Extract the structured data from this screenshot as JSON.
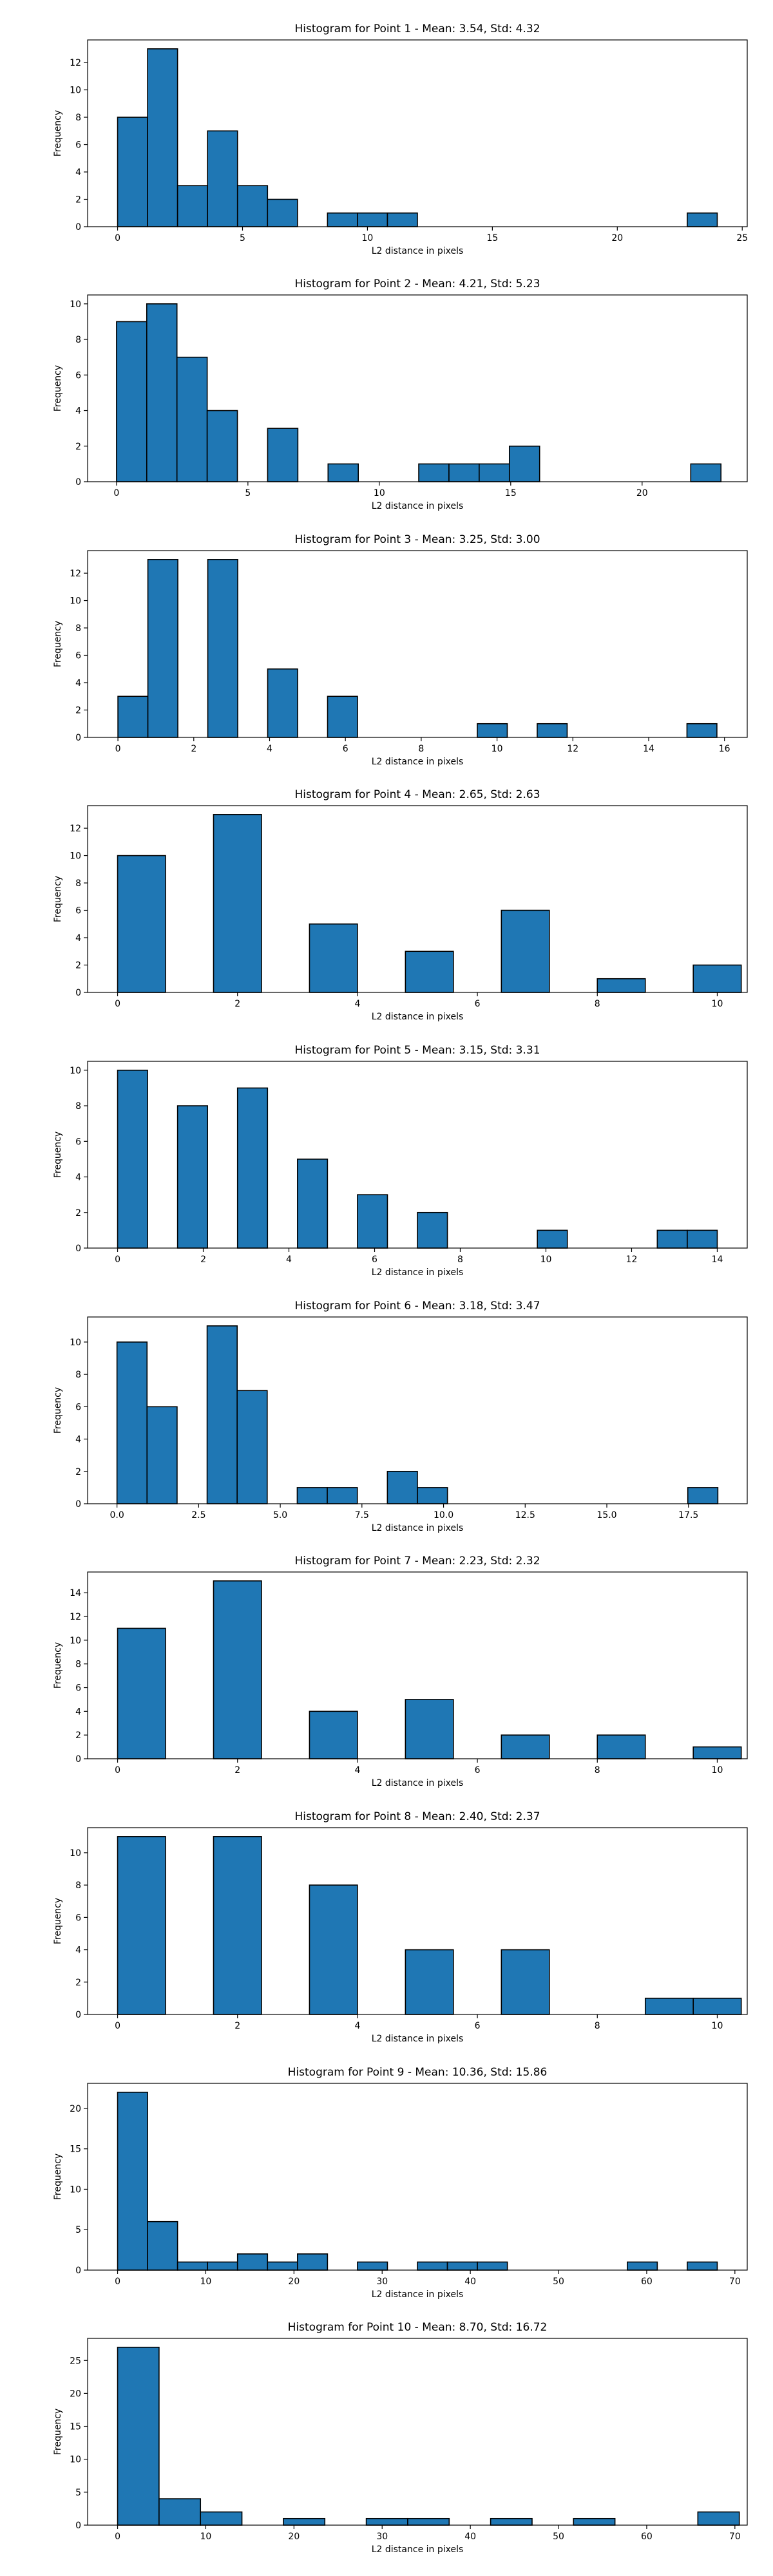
{
  "colors": {
    "bar_fill": "#1f77b4",
    "bar_edge": "#000000",
    "axes": "#000000",
    "background": "#ffffff"
  },
  "chart_data": [
    {
      "type": "bar",
      "title": "Histogram for Point 1 - Mean: 3.54, Std: 4.32",
      "xlabel": "L2 distance in pixels",
      "ylabel": "Frequency",
      "grid": false,
      "xlim": [
        -1.2,
        25.2
      ],
      "ylim": [
        0,
        13.65
      ],
      "xticks": [
        0,
        5,
        10,
        15,
        20,
        25
      ],
      "xtick_labels": [
        "0",
        "5",
        "10",
        "15",
        "20",
        "25"
      ],
      "yticks": [
        0,
        2,
        4,
        6,
        8,
        10,
        12
      ],
      "ytick_labels": [
        "0",
        "2",
        "4",
        "6",
        "8",
        "10",
        "12"
      ],
      "bins": [
        {
          "x0": 0,
          "x1": 1.2,
          "count": 8
        },
        {
          "x0": 1.2,
          "x1": 2.4,
          "count": 13
        },
        {
          "x0": 2.4,
          "x1": 3.6,
          "count": 3
        },
        {
          "x0": 3.6,
          "x1": 4.8,
          "count": 7
        },
        {
          "x0": 4.8,
          "x1": 6.0,
          "count": 3
        },
        {
          "x0": 6.0,
          "x1": 7.2,
          "count": 2
        },
        {
          "x0": 8.4,
          "x1": 9.6,
          "count": 1
        },
        {
          "x0": 9.6,
          "x1": 10.8,
          "count": 1
        },
        {
          "x0": 10.8,
          "x1": 12.0,
          "count": 1
        },
        {
          "x0": 22.8,
          "x1": 24.0,
          "count": 1
        }
      ]
    },
    {
      "type": "bar",
      "title": "Histogram for Point 2 - Mean: 4.21, Std: 5.23",
      "xlabel": "L2 distance in pixels",
      "ylabel": "Frequency",
      "grid": false,
      "xlim": [
        -1.1,
        24.0
      ],
      "ylim": [
        0,
        10.5
      ],
      "xticks": [
        0,
        5,
        10,
        15,
        20
      ],
      "xtick_labels": [
        "0",
        "5",
        "10",
        "15",
        "20"
      ],
      "yticks": [
        0,
        2,
        4,
        6,
        8,
        10
      ],
      "ytick_labels": [
        "0",
        "2",
        "4",
        "6",
        "8",
        "10"
      ],
      "bins": [
        {
          "x0": 0,
          "x1": 1.15,
          "count": 9
        },
        {
          "x0": 1.15,
          "x1": 2.3,
          "count": 10
        },
        {
          "x0": 2.3,
          "x1": 3.45,
          "count": 7
        },
        {
          "x0": 3.45,
          "x1": 4.6,
          "count": 4
        },
        {
          "x0": 5.75,
          "x1": 6.9,
          "count": 3
        },
        {
          "x0": 8.05,
          "x1": 9.2,
          "count": 1
        },
        {
          "x0": 11.5,
          "x1": 12.65,
          "count": 1
        },
        {
          "x0": 12.65,
          "x1": 13.8,
          "count": 1
        },
        {
          "x0": 13.8,
          "x1": 14.95,
          "count": 1
        },
        {
          "x0": 14.95,
          "x1": 16.1,
          "count": 2
        },
        {
          "x0": 21.85,
          "x1": 23.0,
          "count": 1
        }
      ]
    },
    {
      "type": "bar",
      "title": "Histogram for Point 3 - Mean: 3.25, Std: 3.00",
      "xlabel": "L2 distance in pixels",
      "ylabel": "Frequency",
      "grid": false,
      "xlim": [
        -0.8,
        16.6
      ],
      "ylim": [
        0,
        13.65
      ],
      "xticks": [
        0,
        2,
        4,
        6,
        8,
        10,
        12,
        14,
        16
      ],
      "xtick_labels": [
        "0",
        "2",
        "4",
        "6",
        "8",
        "10",
        "12",
        "14",
        "16"
      ],
      "yticks": [
        0,
        2,
        4,
        6,
        8,
        10,
        12
      ],
      "ytick_labels": [
        "0",
        "2",
        "4",
        "6",
        "8",
        "10",
        "12"
      ],
      "bins": [
        {
          "x0": 0,
          "x1": 0.79,
          "count": 3
        },
        {
          "x0": 0.79,
          "x1": 1.58,
          "count": 13
        },
        {
          "x0": 2.37,
          "x1": 3.16,
          "count": 13
        },
        {
          "x0": 3.95,
          "x1": 4.74,
          "count": 5
        },
        {
          "x0": 5.53,
          "x1": 6.32,
          "count": 3
        },
        {
          "x0": 9.48,
          "x1": 10.27,
          "count": 1
        },
        {
          "x0": 11.06,
          "x1": 11.85,
          "count": 1
        },
        {
          "x0": 15.01,
          "x1": 15.8,
          "count": 1
        }
      ]
    },
    {
      "type": "bar",
      "title": "Histogram for Point 4 - Mean: 2.65, Std: 2.63",
      "xlabel": "L2 distance in pixels",
      "ylabel": "Frequency",
      "grid": false,
      "xlim": [
        -0.5,
        10.5
      ],
      "ylim": [
        0,
        13.65
      ],
      "xticks": [
        0,
        2,
        4,
        6,
        8,
        10
      ],
      "xtick_labels": [
        "0",
        "2",
        "4",
        "6",
        "8",
        "10"
      ],
      "yticks": [
        0,
        2,
        4,
        6,
        8,
        10,
        12
      ],
      "ytick_labels": [
        "0",
        "2",
        "4",
        "6",
        "8",
        "10",
        "12"
      ],
      "bins": [
        {
          "x0": 0,
          "x1": 0.8,
          "count": 10
        },
        {
          "x0": 1.6,
          "x1": 2.4,
          "count": 13
        },
        {
          "x0": 3.2,
          "x1": 4.0,
          "count": 5
        },
        {
          "x0": 4.8,
          "x1": 5.6,
          "count": 3
        },
        {
          "x0": 6.4,
          "x1": 7.2,
          "count": 6
        },
        {
          "x0": 8.0,
          "x1": 8.8,
          "count": 1
        },
        {
          "x0": 9.6,
          "x1": 10.4,
          "count": 2
        }
      ],
      "x_label_offset": -1.6
    },
    {
      "type": "bar",
      "title": "Histogram for Point 5 - Mean: 3.15, Std: 3.31",
      "xlabel": "L2 distance in pixels",
      "ylabel": "Frequency",
      "grid": false,
      "xlim": [
        -0.7,
        14.7
      ],
      "ylim": [
        0,
        10.5
      ],
      "xticks": [
        0,
        2,
        4,
        6,
        8,
        10,
        12,
        14
      ],
      "xtick_labels": [
        "0",
        "2",
        "4",
        "6",
        "8",
        "10",
        "12",
        "14"
      ],
      "yticks": [
        0,
        2,
        4,
        6,
        8,
        10
      ],
      "ytick_labels": [
        "0",
        "2",
        "4",
        "6",
        "8",
        "10"
      ],
      "bins": [
        {
          "x0": 0,
          "x1": 0.7,
          "count": 10
        },
        {
          "x0": 1.4,
          "x1": 2.1,
          "count": 8
        },
        {
          "x0": 2.8,
          "x1": 3.5,
          "count": 9
        },
        {
          "x0": 4.2,
          "x1": 4.9,
          "count": 5
        },
        {
          "x0": 5.6,
          "x1": 6.3,
          "count": 3
        },
        {
          "x0": 7.0,
          "x1": 7.7,
          "count": 2
        },
        {
          "x0": 9.8,
          "x1": 10.5,
          "count": 1
        },
        {
          "x0": 12.6,
          "x1": 13.3,
          "count": 1
        },
        {
          "x0": 13.3,
          "x1": 14.0,
          "count": 1
        }
      ]
    },
    {
      "type": "bar",
      "title": "Histogram for Point 6 - Mean: 3.18, Std: 3.47",
      "xlabel": "L2 distance in pixels",
      "ylabel": "Frequency",
      "grid": false,
      "xlim": [
        -0.9,
        19.3
      ],
      "ylim": [
        0,
        11.55
      ],
      "xticks": [
        0,
        2.5,
        5,
        7.5,
        10,
        12.5,
        15,
        17.5
      ],
      "xtick_labels": [
        "0.0",
        "2.5",
        "5.0",
        "7.5",
        "10.0",
        "12.5",
        "15.0",
        "17.5"
      ],
      "yticks": [
        0,
        2,
        4,
        6,
        8,
        10
      ],
      "ytick_labels": [
        "0",
        "2",
        "4",
        "6",
        "8",
        "10"
      ],
      "bins": [
        {
          "x0": 0,
          "x1": 0.92,
          "count": 10
        },
        {
          "x0": 0.92,
          "x1": 1.84,
          "count": 6
        },
        {
          "x0": 2.76,
          "x1": 3.68,
          "count": 11
        },
        {
          "x0": 3.68,
          "x1": 4.6,
          "count": 7
        },
        {
          "x0": 5.52,
          "x1": 6.44,
          "count": 1
        },
        {
          "x0": 6.44,
          "x1": 7.36,
          "count": 1
        },
        {
          "x0": 8.28,
          "x1": 9.2,
          "count": 2
        },
        {
          "x0": 9.2,
          "x1": 10.12,
          "count": 1
        },
        {
          "x0": 17.48,
          "x1": 18.4,
          "count": 1
        }
      ]
    },
    {
      "type": "bar",
      "title": "Histogram for Point 7 - Mean: 2.23, Std: 2.32",
      "xlabel": "L2 distance in pixels",
      "ylabel": "Frequency",
      "grid": false,
      "xlim": [
        -0.5,
        10.5
      ],
      "ylim": [
        0,
        15.75
      ],
      "xticks": [
        0,
        2,
        4,
        6,
        8,
        10
      ],
      "xtick_labels": [
        "0",
        "2",
        "4",
        "6",
        "8",
        "10"
      ],
      "yticks": [
        0,
        2,
        4,
        6,
        8,
        10,
        12,
        14
      ],
      "ytick_labels": [
        "0",
        "2",
        "4",
        "6",
        "8",
        "10",
        "12",
        "14"
      ],
      "bins": [
        {
          "x0": 0,
          "x1": 0.8,
          "count": 11
        },
        {
          "x0": 1.6,
          "x1": 2.4,
          "count": 15
        },
        {
          "x0": 3.2,
          "x1": 4.0,
          "count": 4
        },
        {
          "x0": 4.8,
          "x1": 5.6,
          "count": 5
        },
        {
          "x0": 6.4,
          "x1": 7.2,
          "count": 2
        },
        {
          "x0": 8.0,
          "x1": 8.8,
          "count": 2
        },
        {
          "x0": 9.6,
          "x1": 10.4,
          "count": 1
        }
      ],
      "x_label_offset": -1.6
    },
    {
      "type": "bar",
      "title": "Histogram for Point 8 - Mean: 2.40, Std: 2.37",
      "xlabel": "L2 distance in pixels",
      "ylabel": "Frequency",
      "grid": false,
      "xlim": [
        -0.5,
        10.5
      ],
      "ylim": [
        0,
        11.55
      ],
      "xticks": [
        0,
        2,
        4,
        6,
        8,
        10
      ],
      "xtick_labels": [
        "0",
        "2",
        "4",
        "6",
        "8",
        "10"
      ],
      "yticks": [
        0,
        2,
        4,
        6,
        8,
        10
      ],
      "ytick_labels": [
        "0",
        "2",
        "4",
        "6",
        "8",
        "10"
      ],
      "bins": [
        {
          "x0": 0,
          "x1": 0.8,
          "count": 11
        },
        {
          "x0": 1.6,
          "x1": 2.4,
          "count": 11
        },
        {
          "x0": 3.2,
          "x1": 4.0,
          "count": 8
        },
        {
          "x0": 4.8,
          "x1": 5.6,
          "count": 4
        },
        {
          "x0": 6.4,
          "x1": 7.2,
          "count": 4
        },
        {
          "x0": 8.8,
          "x1": 9.6,
          "count": 1
        },
        {
          "x0": 9.6,
          "x1": 10.4,
          "count": 1
        }
      ],
      "x_label_offset": -1.6
    },
    {
      "type": "bar",
      "title": "Histogram for Point 9 - Mean: 10.36, Std: 15.86",
      "xlabel": "L2 distance in pixels",
      "ylabel": "Frequency",
      "grid": false,
      "xlim": [
        -3.4,
        71.4
      ],
      "ylim": [
        0,
        23.1
      ],
      "xticks": [
        0,
        10,
        20,
        30,
        40,
        50,
        60,
        70
      ],
      "xtick_labels": [
        "0",
        "10",
        "20",
        "30",
        "40",
        "50",
        "60",
        "70"
      ],
      "yticks": [
        0,
        5,
        10,
        15,
        20
      ],
      "ytick_labels": [
        "0",
        "5",
        "10",
        "15",
        "20"
      ],
      "bins": [
        {
          "x0": 0,
          "x1": 3.4,
          "count": 22
        },
        {
          "x0": 3.4,
          "x1": 6.8,
          "count": 6
        },
        {
          "x0": 6.8,
          "x1": 10.2,
          "count": 1
        },
        {
          "x0": 10.2,
          "x1": 13.6,
          "count": 1
        },
        {
          "x0": 13.6,
          "x1": 17.0,
          "count": 2
        },
        {
          "x0": 17.0,
          "x1": 20.4,
          "count": 1
        },
        {
          "x0": 20.4,
          "x1": 23.8,
          "count": 2
        },
        {
          "x0": 27.2,
          "x1": 30.6,
          "count": 1
        },
        {
          "x0": 34.0,
          "x1": 37.4,
          "count": 1
        },
        {
          "x0": 37.4,
          "x1": 40.8,
          "count": 1
        },
        {
          "x0": 40.8,
          "x1": 44.2,
          "count": 1
        },
        {
          "x0": 57.8,
          "x1": 61.2,
          "count": 1
        },
        {
          "x0": 64.6,
          "x1": 68.0,
          "count": 1
        }
      ]
    },
    {
      "type": "bar",
      "title": "Histogram for Point 10 - Mean: 8.70, Std: 16.72",
      "xlabel": "L2 distance in pixels",
      "ylabel": "Frequency",
      "grid": false,
      "xlim": [
        -3.4,
        71.4
      ],
      "ylim": [
        0,
        28.35
      ],
      "xticks": [
        0,
        10,
        20,
        30,
        40,
        50,
        60,
        70
      ],
      "xtick_labels": [
        "0",
        "10",
        "20",
        "30",
        "40",
        "50",
        "60",
        "70"
      ],
      "yticks": [
        0,
        5,
        10,
        15,
        20,
        25
      ],
      "ytick_labels": [
        "0",
        "5",
        "10",
        "15",
        "20",
        "25"
      ],
      "bins": [
        {
          "x0": 0,
          "x1": 4.7,
          "count": 27
        },
        {
          "x0": 4.7,
          "x1": 9.4,
          "count": 4
        },
        {
          "x0": 9.4,
          "x1": 14.1,
          "count": 2
        },
        {
          "x0": 18.8,
          "x1": 23.5,
          "count": 1
        },
        {
          "x0": 28.2,
          "x1": 32.9,
          "count": 1
        },
        {
          "x0": 32.9,
          "x1": 37.6,
          "count": 1
        },
        {
          "x0": 42.3,
          "x1": 47.0,
          "count": 1
        },
        {
          "x0": 51.7,
          "x1": 56.4,
          "count": 1
        },
        {
          "x0": 65.8,
          "x1": 70.5,
          "count": 2
        }
      ]
    }
  ]
}
